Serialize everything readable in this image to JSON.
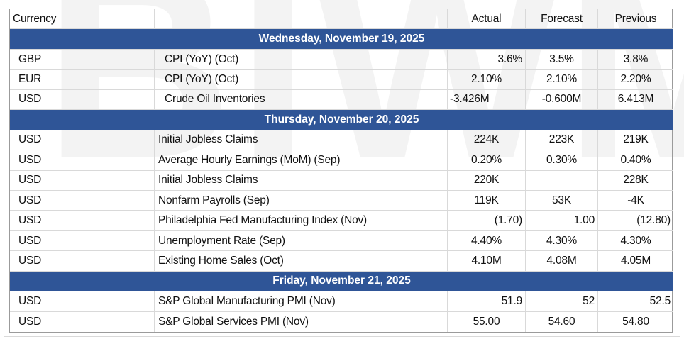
{
  "watermark": "BIWM",
  "colors": {
    "banner_blue": "#2F5597",
    "gridline": "#d9d9d9",
    "outer_border": "#9b9b9b"
  },
  "chart_data": {
    "type": "table",
    "header": {
      "currency": "Currency",
      "time": "",
      "event": "",
      "actual": "Actual",
      "forecast": "Forecast",
      "previous": "Previous"
    },
    "sections": [
      {
        "date": "Wednesday, November 19, 2025",
        "rows": [
          {
            "currency": "GBP",
            "event": "CPI (YoY) (Oct)",
            "actual": "3.6%",
            "forecast": "3.5%",
            "previous": "3.8%"
          },
          {
            "currency": "EUR",
            "event": "CPI (YoY) (Oct)",
            "actual": "2.10%",
            "forecast": "2.10%",
            "previous": "2.20%"
          },
          {
            "currency": "USD",
            "event": "Crude Oil Inventories",
            "actual": "-3.426M",
            "forecast": "-0.600M",
            "previous": "6.413M"
          }
        ]
      },
      {
        "date": "Thursday, November 20, 2025",
        "rows": [
          {
            "currency": "USD",
            "event": "Initial Jobless Claims",
            "actual": "224K",
            "forecast": "223K",
            "previous": "219K"
          },
          {
            "currency": "USD",
            "event": "Average Hourly Earnings (MoM) (Sep)",
            "actual": "0.20%",
            "forecast": "0.30%",
            "previous": "0.40%"
          },
          {
            "currency": "USD",
            "event": "Initial Jobless Claims",
            "actual": "220K",
            "forecast": "",
            "previous": "228K"
          },
          {
            "currency": "USD",
            "event": "Nonfarm Payrolls (Sep)",
            "actual": "119K",
            "forecast": "53K",
            "previous": "-4K"
          },
          {
            "currency": "USD",
            "event": "Philadelphia Fed Manufacturing Index (Nov)",
            "actual": "(1.70)",
            "forecast": "1.00",
            "previous": "(12.80)"
          },
          {
            "currency": "USD",
            "event": "Unemployment Rate (Sep)",
            "actual": "4.40%",
            "forecast": "4.30%",
            "previous": "4.30%"
          },
          {
            "currency": "USD",
            "event": "Existing Home Sales (Oct)",
            "actual": "4.10M",
            "forecast": "4.08M",
            "previous": "4.05M"
          }
        ]
      },
      {
        "date": "Friday, November 21, 2025",
        "rows": [
          {
            "currency": "USD",
            "event": "S&P Global Manufacturing PMI (Nov)",
            "actual": "51.9",
            "forecast": "52",
            "previous": "52.5"
          },
          {
            "currency": "USD",
            "event": "S&P Global Services PMI (Nov)",
            "actual": "55.00",
            "forecast": "54.60",
            "previous": "54.80"
          }
        ]
      }
    ]
  }
}
